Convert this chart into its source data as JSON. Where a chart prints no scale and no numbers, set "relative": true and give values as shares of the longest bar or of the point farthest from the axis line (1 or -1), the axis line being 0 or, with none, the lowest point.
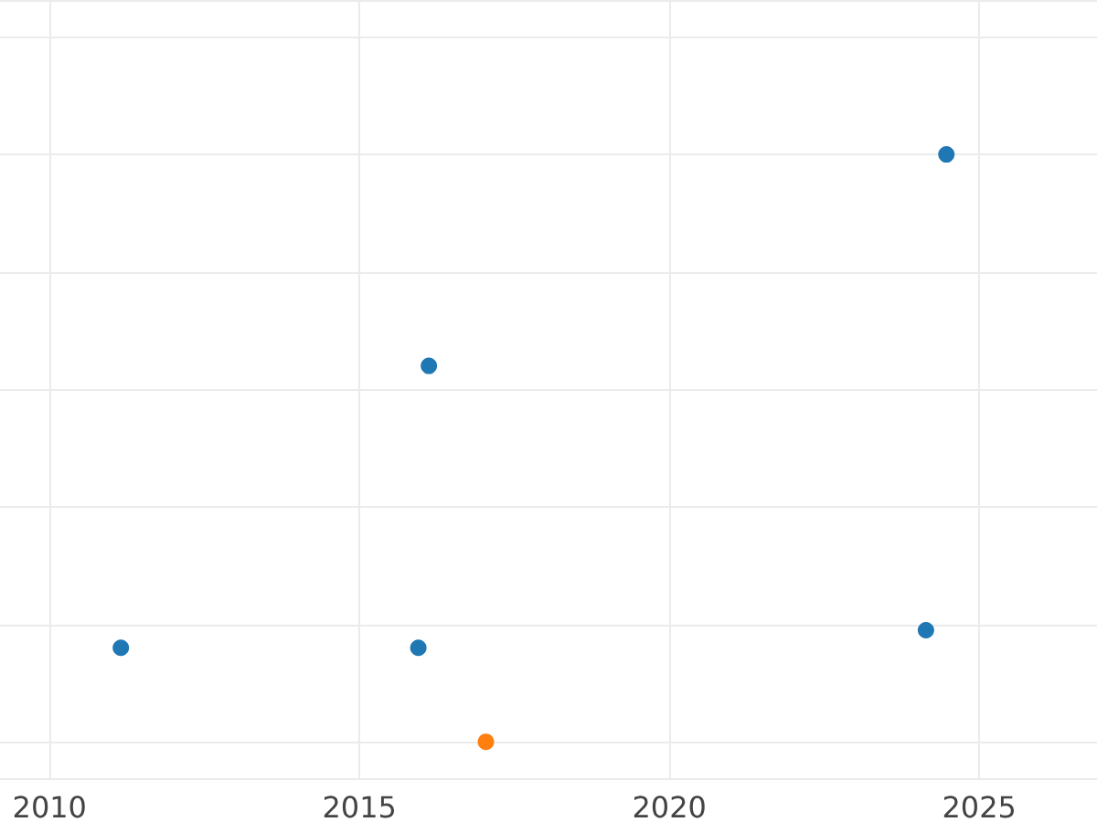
{
  "chart_data": {
    "type": "scatter",
    "relative": true,
    "grid": true,
    "marker": "circle",
    "tick_labels": "x",
    "xlim": [
      2009.2,
      2026.9
    ],
    "xticks": [
      2010,
      2015,
      2020,
      2025
    ],
    "series": [
      {
        "color": "#1f77b4",
        "x": [
          2011.15,
          2016.12,
          2015.95,
          2024.14,
          2024.47
        ],
        "values": [
          0.16,
          0.64,
          0.16,
          0.19,
          1
        ]
      },
      {
        "color": "#ff7f0e",
        "x": [
          2017.04
        ],
        "values": [
          0
        ]
      }
    ]
  }
}
